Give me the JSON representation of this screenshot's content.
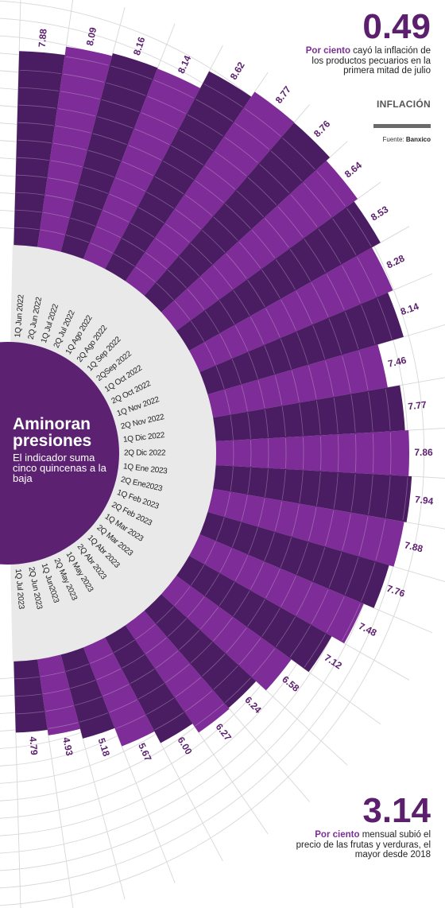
{
  "headline_top": {
    "value": "0.49",
    "lead": "Por ciento",
    "text": " cayó la inflación de los productos pecuarios en la primera mitad de julio"
  },
  "section_tag": "INFLACIÓN",
  "source": {
    "label": "Fuente:",
    "name": "Banxico"
  },
  "title": {
    "main": "Aminoran presiones",
    "sub": "El indicador suma cinco quincenas a la baja"
  },
  "headline_bottom": {
    "value": "3.14",
    "lead": "Por ciento",
    "text": " mensual subió el precio de las frutas y verduras, el mayor desde 2018"
  },
  "colors": {
    "dark": "#4a1d63",
    "light": "#7e2c97",
    "hub": "#5c2171",
    "label_ring": "#e9e9e9",
    "value_text": "#5b1f6e"
  },
  "chart_data": {
    "type": "bar",
    "subtype": "radial",
    "categories": [
      "1Q Jun 2022",
      "2Q Jun 2022",
      "1Q Jul 2022",
      "2Q Jul 2022",
      "1Q Ago 2022",
      "2Q Ago 2022",
      "1Q Sep 2022",
      "2QSep 2022",
      "1Q Oct 2022",
      "2Q Oct 2022",
      "1Q Nov 2022",
      "2Q Nov 2022",
      "1Q Dic 2022",
      "2Q Dic 2022",
      "1Q Ene 2023",
      "2Q Ene2023",
      "1Q Feb 2023",
      "2Q Feb 2023",
      "1Q Mar 2023",
      "2Q Mar 2023",
      "1Q Abr 2023",
      "2Q Abr 2023",
      "1Q May 2023",
      "2Q May 2023",
      "1Q Jun2023",
      "2Q Jun 2023",
      "1Q Jul 2023"
    ],
    "values": [
      7.88,
      8.09,
      8.16,
      8.14,
      8.62,
      8.77,
      8.76,
      8.64,
      8.53,
      8.28,
      8.14,
      7.46,
      7.77,
      7.86,
      7.94,
      7.88,
      7.76,
      7.48,
      7.12,
      6.58,
      6.24,
      6.27,
      6.0,
      5.67,
      5.18,
      4.93,
      4.79
    ],
    "value_labels": [
      "7.88",
      "8.09",
      "8.16",
      "8.14",
      "8.62",
      "8.77",
      "8.76",
      "8.64",
      "8.53",
      "8.28",
      "8.14",
      "7.46",
      "7.77",
      "7.86",
      "7.94",
      "7.88",
      "7.76",
      "7.48",
      "7.12",
      "6.58",
      "6.24",
      "6.27",
      "6.00",
      "5.67",
      "5.18",
      "4.93",
      "4.79"
    ]
  }
}
